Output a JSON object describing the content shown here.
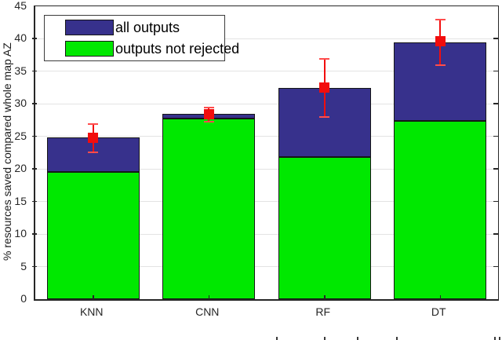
{
  "figure": {
    "ylabel": "% resources saved compared whole map AZ",
    "legend": {
      "items": [
        {
          "label": "all outputs",
          "color": "#37318C"
        },
        {
          "label": "outputs not rejected",
          "color": "#00E800"
        }
      ]
    }
  },
  "chart_data": {
    "type": "bar",
    "stacked": true,
    "title": "",
    "xlabel": "",
    "ylabel": "% resources saved compared whole map AZ",
    "categories": [
      "KNN",
      "CNN",
      "RF",
      "DT"
    ],
    "series": [
      {
        "name": "all outputs",
        "color": "#37318C",
        "values": [
          24.8,
          28.5,
          32.5,
          39.4
        ]
      },
      {
        "name": "outputs not rejected",
        "color": "#00E800",
        "values": [
          19.5,
          27.8,
          21.8,
          27.4
        ]
      }
    ],
    "error_bars": {
      "color": "#F20D0D",
      "cap_color": "#FF4D4D",
      "marker": "filled-square",
      "mean": [
        24.8,
        28.4,
        32.5,
        39.6
      ],
      "low": [
        22.6,
        27.3,
        28.0,
        36.0
      ],
      "high": [
        26.9,
        29.4,
        36.9,
        42.9
      ]
    },
    "ylim": [
      0,
      45
    ],
    "ytick_step": 5,
    "grid": true,
    "legend_position": "top-left",
    "axis_color": "#262626",
    "grid_color": "#E3E3E3"
  },
  "cropped_caption_marks_x": [
    352,
    413,
    455,
    505,
    630,
    636
  ]
}
